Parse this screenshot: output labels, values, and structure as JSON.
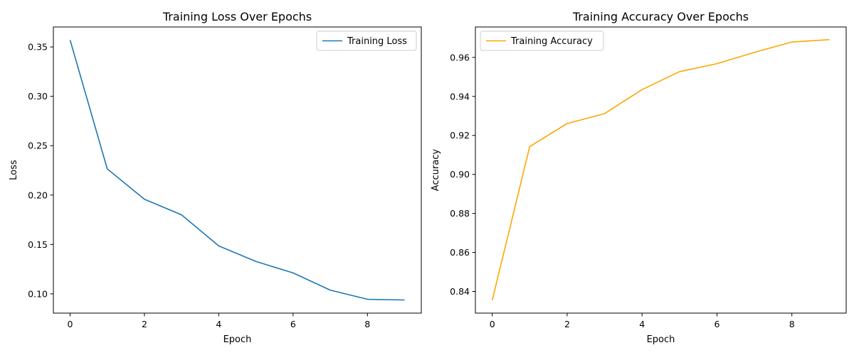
{
  "chart_data": [
    {
      "type": "line",
      "title": "Training Loss Over Epochs",
      "xlabel": "Epoch",
      "ylabel": "Loss",
      "xlim": [
        -0.45,
        9.45
      ],
      "ylim": [
        0.0805,
        0.3702
      ],
      "xticks": [
        0,
        2,
        4,
        6,
        8
      ],
      "xtick_labels": [
        "0",
        "2",
        "4",
        "6",
        "8"
      ],
      "yticks": [
        0.1,
        0.15,
        0.2,
        0.25,
        0.3,
        0.35
      ],
      "ytick_labels": [
        "0.10",
        "0.15",
        "0.20",
        "0.25",
        "0.30",
        "0.35"
      ],
      "legend_position": "top-right",
      "grid": false,
      "x": [
        0,
        1,
        2,
        3,
        4,
        5,
        6,
        7,
        8,
        9
      ],
      "series": [
        {
          "name": "Training Loss",
          "color": "#1f77b4",
          "values": [
            0.357,
            0.2265,
            0.1958,
            0.18,
            0.1485,
            0.1328,
            0.1212,
            0.1038,
            0.0945,
            0.0938
          ]
        }
      ]
    },
    {
      "type": "line",
      "title": "Training Accuracy Over Epochs",
      "xlabel": "Epoch",
      "ylabel": "Accuracy",
      "xlim": [
        -0.45,
        9.45
      ],
      "ylim": [
        0.8289,
        0.9756
      ],
      "xticks": [
        0,
        2,
        4,
        6,
        8
      ],
      "xtick_labels": [
        "0",
        "2",
        "4",
        "6",
        "8"
      ],
      "yticks": [
        0.84,
        0.86,
        0.88,
        0.9,
        0.92,
        0.94,
        0.96
      ],
      "ytick_labels": [
        "0.84",
        "0.86",
        "0.88",
        "0.90",
        "0.92",
        "0.94",
        "0.96"
      ],
      "legend_position": "top-left",
      "grid": false,
      "x": [
        0,
        1,
        2,
        3,
        4,
        5,
        6,
        7,
        8,
        9
      ],
      "series": [
        {
          "name": "Training Accuracy",
          "color": "#ffa500",
          "values": [
            0.8355,
            0.9143,
            0.9261,
            0.9312,
            0.9435,
            0.9527,
            0.9568,
            0.9626,
            0.9679,
            0.9691
          ]
        }
      ]
    }
  ]
}
